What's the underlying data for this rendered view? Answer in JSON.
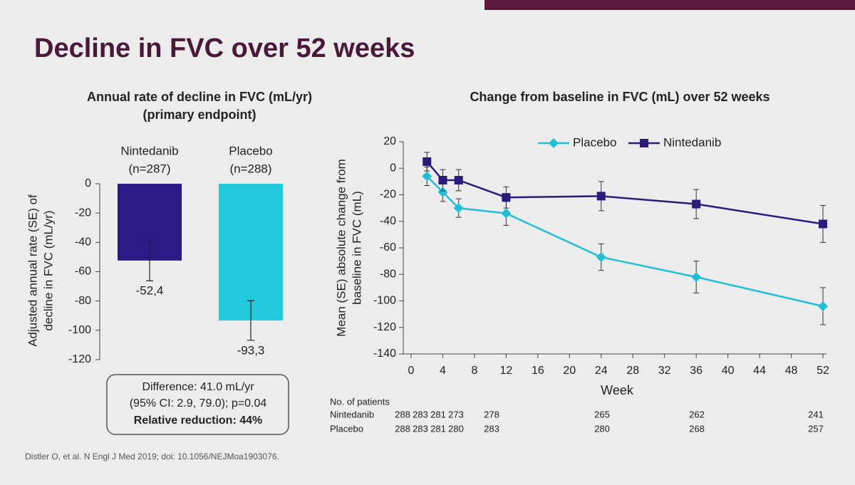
{
  "title": "Decline in FVC over 52 weeks",
  "chart_data": [
    {
      "type": "bar",
      "title": [
        "Annual rate of decline in FVC (mL/yr)",
        "(primary endpoint)"
      ],
      "categories": [
        "Nintedanib",
        "Placebo"
      ],
      "category_notes": [
        "(n=287)",
        "(n=288)"
      ],
      "values": [
        -52.4,
        -93.3
      ],
      "value_labels": [
        "-52,4",
        "-93,3"
      ],
      "errors": [
        13.8,
        13.5
      ],
      "colors": [
        "#2e1a87",
        "#22c8dc"
      ],
      "ylabel": [
        "Adjusted annual rate (SE) of",
        "decline in FVC (mL/yr)"
      ],
      "ylim": [
        -120,
        0
      ],
      "yticks": [
        0,
        -20,
        -40,
        -60,
        -80,
        -100,
        -120
      ]
    },
    {
      "type": "line",
      "title": "Change from baseline in FVC (mL) over 52 weeks",
      "x": [
        2,
        4,
        6,
        12,
        24,
        36,
        52
      ],
      "series": [
        {
          "name": "Placebo",
          "color": "#22bfd4",
          "marker": "diamond",
          "values": [
            -6,
            -18,
            -30,
            -34,
            -67,
            -82,
            -104
          ],
          "errors": [
            7,
            7,
            7,
            9,
            10,
            12,
            14
          ]
        },
        {
          "name": "Nintedanib",
          "color": "#2b1a7a",
          "marker": "square",
          "values": [
            5,
            -9,
            -9,
            -22,
            -21,
            -27,
            -42
          ],
          "errors": [
            7,
            8,
            8,
            8,
            11,
            11,
            14
          ]
        }
      ],
      "xlabel": "Week",
      "ylabel": [
        "Mean (SE) absolute change from",
        "baseline in FVC (mL)"
      ],
      "xlim": [
        0,
        52
      ],
      "xticks": [
        0,
        4,
        8,
        12,
        16,
        20,
        24,
        28,
        32,
        36,
        40,
        44,
        48,
        52
      ],
      "ylim": [
        -140,
        20
      ],
      "yticks": [
        20,
        0,
        -20,
        -40,
        -60,
        -80,
        -100,
        -120,
        -140
      ],
      "legend": "top"
    }
  ],
  "difference_box": [
    "Difference: 41.0 mL/yr",
    "(95% CI: 2.9, 79.0); p=0.04",
    "Relative reduction: 44%"
  ],
  "patients": {
    "title": "No. of patients",
    "rows": [
      {
        "name": "Nintedanib",
        "values": [
          288,
          283,
          281,
          273,
          278,
          265,
          262,
          241
        ]
      },
      {
        "name": "Placebo",
        "values": [
          288,
          283,
          281,
          280,
          283,
          280,
          268,
          257
        ]
      }
    ]
  },
  "citation": "Distler O, et al. N Engl J Med 2019; doi: 10.1056/NEJMoa1903076."
}
